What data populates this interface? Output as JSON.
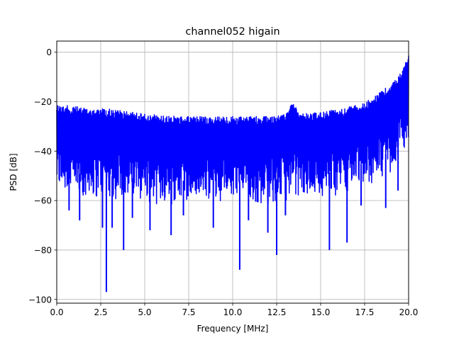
{
  "chart_data": {
    "type": "line",
    "title": "channel052 higain",
    "xlabel": "Frequency [MHz]",
    "ylabel": "PSD [dB]",
    "xlim": [
      0,
      20
    ],
    "ylim": [
      -101.5,
      4.5
    ],
    "xticks": [
      0,
      2.5,
      5,
      7.5,
      10,
      12.5,
      15,
      17.5,
      20
    ],
    "xtick_labels": [
      "0.0",
      "2.5",
      "5.0",
      "7.5",
      "10.0",
      "12.5",
      "15.0",
      "17.5",
      "20.0"
    ],
    "yticks": [
      0,
      -20,
      -40,
      -60,
      -80,
      -100
    ],
    "ytick_labels": [
      "0",
      "−20",
      "−40",
      "−60",
      "−80",
      "−100"
    ],
    "grid": true,
    "legend": "none",
    "series": [
      {
        "color": "#0000ff",
        "upper_envelope": {
          "x": [
            0,
            1,
            2,
            3,
            4,
            5,
            6,
            7,
            8,
            9,
            10,
            11,
            12,
            13,
            13.3,
            14,
            15,
            16,
            17,
            17.5,
            18,
            18.5,
            19,
            19.5,
            19.9,
            20
          ],
          "y": [
            -21,
            -22,
            -22.5,
            -23,
            -24,
            -25,
            -25.5,
            -26,
            -26,
            -26,
            -26,
            -26,
            -26,
            -25,
            -20,
            -25,
            -24,
            -23,
            -21.5,
            -20.5,
            -18,
            -15.5,
            -13,
            -9,
            -3,
            0
          ]
        },
        "lower_envelope": {
          "x": [
            0,
            1,
            2,
            3,
            4,
            5,
            6,
            7,
            8,
            9,
            10,
            11,
            12,
            13,
            14,
            15,
            16,
            17,
            18,
            19,
            19.5,
            20
          ],
          "y": [
            -52,
            -55,
            -56,
            -56,
            -57,
            -57,
            -58,
            -58,
            -58,
            -58,
            -58,
            -58,
            -58,
            -57,
            -56,
            -55,
            -54,
            -52,
            -50,
            -46,
            -42,
            -33
          ]
        },
        "deep_dips": {
          "x": [
            0.7,
            1.3,
            2.6,
            2.82,
            3.15,
            3.8,
            4.3,
            5.3,
            6.5,
            7.2,
            8.9,
            10.4,
            10.9,
            12.0,
            12.5,
            13.0,
            15.5,
            16.5,
            17.3,
            18.7,
            19.4
          ],
          "y": [
            -64,
            -68,
            -71,
            -97,
            -71,
            -80,
            -67,
            -72,
            -74,
            -66,
            -71,
            -88,
            -68,
            -73,
            -82,
            -66,
            -80,
            -77,
            -62,
            -63,
            -56
          ]
        }
      }
    ]
  }
}
